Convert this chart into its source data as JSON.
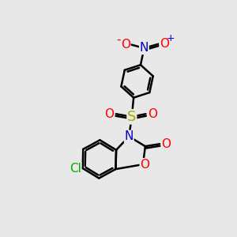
{
  "bg_color": "#e8e8e8",
  "bond_color": "#000000",
  "bond_width": 1.8,
  "colors": {
    "C": "#000000",
    "N": "#0000cc",
    "O": "#ff0000",
    "S": "#aaaa00",
    "Cl": "#00aa00"
  },
  "fs": 11,
  "fs_charge": 9,
  "ring_r": 0.72,
  "dbo": 0.09
}
